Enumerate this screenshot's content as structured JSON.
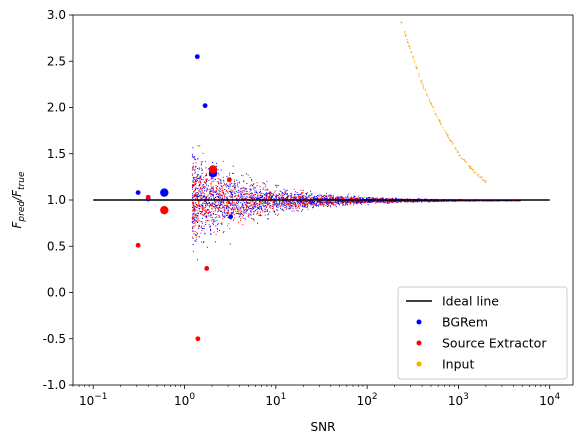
{
  "chart_data": {
    "type": "scatter",
    "xlabel": "SNR",
    "ylabel_main": "F",
    "ylabel_sub1": "pred",
    "ylabel_sub2": "true",
    "x_scale": "log",
    "xlim": [
      0.06,
      18000
    ],
    "ylim": [
      -1.0,
      3.0
    ],
    "x_ticks": [
      {
        "value": 0.1,
        "base": "10",
        "exp": "−1"
      },
      {
        "value": 1,
        "base": "10",
        "exp": "0"
      },
      {
        "value": 10,
        "base": "10",
        "exp": "1"
      },
      {
        "value": 100,
        "base": "10",
        "exp": "2"
      },
      {
        "value": 1000,
        "base": "10",
        "exp": "3"
      },
      {
        "value": 10000,
        "base": "10",
        "exp": "4"
      }
    ],
    "y_ticks": [
      "-1.0",
      "-0.5",
      "0.0",
      "0.5",
      "1.0",
      "1.5",
      "2.0",
      "2.5",
      "3.0"
    ],
    "grid": false,
    "legend_position": "bottom-right",
    "legend": [
      {
        "label": "Ideal line",
        "type": "line",
        "color": "#000000"
      },
      {
        "label": "BGRem",
        "type": "marker",
        "color": "#0000ff"
      },
      {
        "label": "Source Extractor",
        "type": "marker",
        "color": "#ff0000"
      },
      {
        "label": "Input",
        "type": "marker",
        "color": "#ffa500"
      }
    ],
    "ideal_line": {
      "x": [
        0.1,
        10000
      ],
      "y": [
        1.0,
        1.0
      ],
      "color": "#000000"
    },
    "series": [
      {
        "name": "BGRem",
        "color": "#0000ff",
        "highlighted_points": [
          {
            "x": 0.31,
            "y": 1.08
          },
          {
            "x": 0.4,
            "y": 1.01
          },
          {
            "x": 0.6,
            "y": 1.08
          },
          {
            "x": 1.38,
            "y": 2.55
          },
          {
            "x": 1.68,
            "y": 2.02
          },
          {
            "x": 2.05,
            "y": 1.29
          },
          {
            "x": 3.2,
            "y": 0.82
          }
        ]
      },
      {
        "name": "Source Extractor",
        "color": "#ff0000",
        "highlighted_points": [
          {
            "x": 0.31,
            "y": 0.51
          },
          {
            "x": 0.4,
            "y": 1.03
          },
          {
            "x": 0.6,
            "y": 0.89
          },
          {
            "x": 1.4,
            "y": -0.5
          },
          {
            "x": 1.75,
            "y": 0.26
          },
          {
            "x": 2.05,
            "y": 1.33
          },
          {
            "x": 3.1,
            "y": 1.22
          }
        ]
      },
      {
        "name": "Input",
        "color": "#ffa500",
        "trend": [
          {
            "x": 230,
            "y": 2.95
          },
          {
            "x": 300,
            "y": 2.6
          },
          {
            "x": 400,
            "y": 2.25
          },
          {
            "x": 550,
            "y": 1.95
          },
          {
            "x": 750,
            "y": 1.7
          },
          {
            "x": 1000,
            "y": 1.5
          },
          {
            "x": 1400,
            "y": 1.33
          },
          {
            "x": 2000,
            "y": 1.2
          }
        ]
      }
    ]
  }
}
